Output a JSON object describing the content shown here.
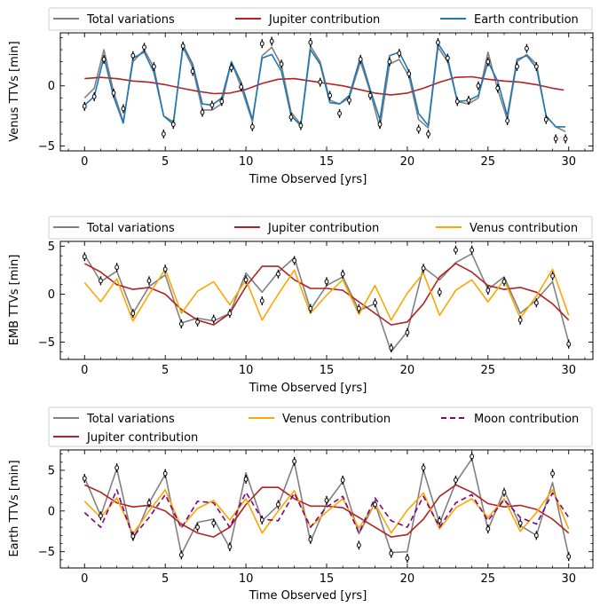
{
  "figure": {
    "panels": [
      {
        "legend_entries": [
          "Total variations",
          "Jupiter contribution",
          "Earth contribution"
        ],
        "ylabel": "Venus TTVs [min]",
        "xlabel": "Time Observed [yrs]"
      },
      {
        "legend_entries": [
          "Total variations",
          "Jupiter contribution",
          "Venus contribution"
        ],
        "ylabel": "EMB TTVs [min]",
        "xlabel": "Time Observed [yrs]"
      },
      {
        "legend_entries": [
          "Total variations",
          "Venus contribution",
          "Moon contribution",
          "Jupiter contribution"
        ],
        "ylabel": "Earth TTVs [min]",
        "xlabel": "Time Observed [yrs]"
      }
    ]
  },
  "colors": {
    "total": "#808080",
    "jupiter": "#b22222",
    "earth": "#1f77b4",
    "venus": "#ffa500",
    "moon": "#800080"
  },
  "chart_data": [
    {
      "type": "line",
      "xlabel": "Time Observed [yrs]",
      "ylabel": "Venus TTVs [min]",
      "xlim": [
        -1.5,
        31.5
      ],
      "ylim": [
        -5.4,
        4.4
      ],
      "x_ticks": [
        0,
        5,
        10,
        15,
        20,
        25,
        30
      ],
      "y_ticks": [
        -5,
        0
      ],
      "series": [
        {
          "name": "Total variations",
          "color": "#808080",
          "dash": "",
          "x": [
            0,
            0.6,
            1.2,
            1.8,
            2.4,
            3.0,
            3.7,
            4.3,
            4.9,
            5.5,
            6.1,
            6.7,
            7.3,
            7.9,
            8.5,
            9.1,
            9.7,
            10.4,
            11.0,
            11.6,
            12.2,
            12.8,
            13.4,
            14.0,
            14.6,
            15.2,
            15.8,
            16.4,
            17.1,
            17.7,
            18.3,
            18.9,
            19.5,
            20.1,
            20.7,
            21.3,
            21.9,
            22.5,
            23.1,
            23.8,
            24.4,
            25.0,
            25.6,
            26.2,
            26.8,
            27.4,
            28.0,
            28.6,
            29.2,
            29.8
          ],
          "y": [
            -1.0,
            -0.2,
            3.0,
            -0.5,
            -3.0,
            2.0,
            3.0,
            1.5,
            -2.5,
            -3.0,
            3.2,
            1.5,
            -2.0,
            -2.0,
            -1.5,
            2.0,
            -0.1,
            -3.0,
            2.5,
            3.2,
            1.7,
            -2.2,
            -3.2,
            3.3,
            2.0,
            -1.2,
            -1.5,
            -1.0,
            2.0,
            -0.5,
            -3.5,
            1.8,
            2.2,
            0.8,
            -2.8,
            -3.5,
            3.2,
            2.0,
            -1.3,
            -1.5,
            -1.0,
            2.8,
            -0.3,
            -2.8,
            2.0,
            2.6,
            1.8,
            -2.5,
            -3.4,
            -3.8
          ]
        },
        {
          "name": "Jupiter contribution",
          "color": "#b22222",
          "dash": "",
          "x": [
            0,
            1,
            2,
            3,
            4,
            5,
            6,
            7,
            8,
            9,
            10,
            11,
            12,
            13,
            14,
            15,
            16,
            17,
            18,
            19,
            20,
            21,
            22,
            23,
            24,
            25,
            26,
            27,
            28,
            29,
            29.7
          ],
          "y": [
            0.6,
            0.7,
            0.6,
            0.4,
            0.3,
            0.1,
            -0.2,
            -0.45,
            -0.65,
            -0.6,
            -0.3,
            0.2,
            0.55,
            0.6,
            0.4,
            0.2,
            0.0,
            -0.3,
            -0.6,
            -0.75,
            -0.6,
            -0.2,
            0.3,
            0.7,
            0.75,
            0.55,
            0.4,
            0.3,
            0.1,
            -0.2,
            -0.35
          ]
        },
        {
          "name": "Earth contribution",
          "color": "#1f77b4",
          "dash": "",
          "x": [
            0,
            0.6,
            1.2,
            1.8,
            2.4,
            3.0,
            3.7,
            4.3,
            4.9,
            5.5,
            6.1,
            6.7,
            7.3,
            7.9,
            8.5,
            9.1,
            9.7,
            10.4,
            11.0,
            11.6,
            12.2,
            12.8,
            13.4,
            14.0,
            14.6,
            15.2,
            15.8,
            16.4,
            17.1,
            17.7,
            18.3,
            18.9,
            19.5,
            20.1,
            20.7,
            21.3,
            21.9,
            22.5,
            23.1,
            23.8,
            24.4,
            25.0,
            25.6,
            26.2,
            26.8,
            27.4,
            28.0,
            28.6,
            29.2,
            29.8
          ],
          "y": [
            -1.6,
            -0.9,
            2.4,
            -0.9,
            -3.1,
            2.3,
            2.8,
            1.1,
            -2.5,
            -3.2,
            3.4,
            1.8,
            -1.5,
            -1.6,
            -1.0,
            2.0,
            0.3,
            -2.8,
            2.3,
            2.6,
            1.2,
            -2.5,
            -3.3,
            3.0,
            1.8,
            -1.4,
            -1.5,
            -0.8,
            2.4,
            -0.3,
            -2.8,
            2.5,
            2.8,
            1.2,
            -2.3,
            -3.3,
            3.5,
            2.3,
            -1.3,
            -1.2,
            -0.8,
            2.0,
            0.4,
            -2.5,
            2.2,
            2.5,
            1.5,
            -2.5,
            -3.4,
            -3.4
          ]
        },
        {
          "name": "",
          "type": "points",
          "x": [
            0,
            0.6,
            1.2,
            1.8,
            2.4,
            3.0,
            3.7,
            4.3,
            4.9,
            5.5,
            6.1,
            6.7,
            7.3,
            7.9,
            8.5,
            9.1,
            9.7,
            10.4,
            11.0,
            11.6,
            12.2,
            12.8,
            13.4,
            14.0,
            14.6,
            15.2,
            15.8,
            16.4,
            17.1,
            17.7,
            18.3,
            18.9,
            19.5,
            20.1,
            20.7,
            21.3,
            21.9,
            22.5,
            23.1,
            23.8,
            24.4,
            25.0,
            25.6,
            26.2,
            26.8,
            27.4,
            28.0,
            28.6,
            29.2,
            29.8
          ],
          "y": [
            -1.7,
            -0.9,
            2.2,
            -0.6,
            -1.9,
            2.5,
            3.2,
            1.6,
            -4.0,
            -3.2,
            3.3,
            1.2,
            -2.2,
            -1.6,
            -1.3,
            1.5,
            -0.1,
            -3.4,
            3.5,
            3.7,
            1.8,
            -2.6,
            -3.3,
            3.6,
            0.3,
            -0.8,
            -2.3,
            -1.2,
            2.2,
            -0.8,
            -3.2,
            2.0,
            2.7,
            1.0,
            -3.6,
            -4.0,
            3.6,
            2.3,
            -1.3,
            -1.2,
            0.0,
            2.0,
            -0.2,
            -2.9,
            1.6,
            3.1,
            1.6,
            -2.8,
            -4.4,
            -4.4
          ]
        }
      ]
    },
    {
      "type": "line",
      "xlabel": "Time Observed [yrs]",
      "ylabel": "EMB TTVs [min]",
      "xlim": [
        -1.5,
        31.5
      ],
      "ylim": [
        -6.8,
        5.5
      ],
      "x_ticks": [
        0,
        5,
        10,
        15,
        20,
        25,
        30
      ],
      "y_ticks": [
        -5,
        0,
        5
      ],
      "series": [
        {
          "name": "Total variations",
          "color": "#808080",
          "dash": "",
          "x": [
            0,
            1,
            2,
            3,
            4,
            5,
            6,
            7,
            8,
            9,
            10,
            11,
            12,
            13,
            14,
            15,
            16,
            17,
            18,
            19,
            20,
            21,
            22,
            23,
            24,
            25,
            26,
            27,
            28,
            29,
            30
          ],
          "y": [
            4.1,
            1.3,
            2.4,
            -2.0,
            0.8,
            2.0,
            -3.0,
            -2.5,
            -2.8,
            -2.0,
            2.2,
            0.2,
            2.3,
            3.8,
            -1.6,
            0.9,
            1.8,
            -1.7,
            -1.0,
            -6.0,
            -3.9,
            2.8,
            1.5,
            3.3,
            4.2,
            0.5,
            1.8,
            -2.0,
            -0.6,
            1.3,
            -5.0
          ]
        },
        {
          "name": "Jupiter contribution",
          "color": "#b22222",
          "dash": "",
          "x": [
            0,
            1,
            2,
            3,
            4,
            5,
            6,
            7,
            8,
            9,
            10,
            11,
            12,
            13,
            14,
            15,
            16,
            17,
            18,
            19,
            20,
            21,
            22,
            23,
            24,
            25,
            26,
            27,
            28,
            29,
            30
          ],
          "y": [
            3.2,
            2.3,
            1.0,
            0.5,
            0.7,
            0.0,
            -1.6,
            -2.7,
            -3.2,
            -2.0,
            0.8,
            2.9,
            2.9,
            1.5,
            0.6,
            0.6,
            0.4,
            -0.8,
            -2.0,
            -3.2,
            -2.9,
            -1.0,
            1.8,
            3.2,
            2.3,
            0.9,
            0.5,
            0.7,
            0.2,
            -1.0,
            -2.7
          ]
        },
        {
          "name": "Venus contribution",
          "color": "#ffa500",
          "dash": "",
          "x": [
            0,
            1,
            2,
            3,
            4,
            5,
            6,
            7,
            8,
            9,
            10,
            11,
            12,
            13,
            14,
            15,
            16,
            17,
            18,
            19,
            20,
            21,
            22,
            23,
            24,
            25,
            26,
            27,
            28,
            29,
            30
          ],
          "y": [
            1.2,
            -0.8,
            1.6,
            -2.8,
            0.0,
            2.6,
            -2.0,
            0.3,
            1.3,
            -1.1,
            1.5,
            -2.7,
            0.0,
            2.5,
            -2.0,
            -0.1,
            1.5,
            -2.1,
            0.9,
            -2.7,
            0.1,
            2.2,
            -2.2,
            0.4,
            1.5,
            -0.8,
            1.5,
            -2.5,
            -0.2,
            2.6,
            -2.2
          ]
        },
        {
          "name": "",
          "type": "points",
          "x": [
            0,
            1,
            2,
            3,
            4,
            5,
            6,
            7,
            8,
            9,
            10,
            11,
            12,
            13,
            14,
            15,
            16,
            17,
            18,
            19,
            20,
            21,
            22,
            23,
            24,
            25,
            26,
            27,
            28,
            29,
            30
          ],
          "y": [
            3.9,
            1.4,
            2.8,
            -2.0,
            1.4,
            2.6,
            -3.1,
            -2.9,
            -2.6,
            -2.0,
            1.5,
            -0.7,
            2.1,
            3.5,
            -1.5,
            1.3,
            2.1,
            -1.5,
            -0.9,
            -5.6,
            -4.0,
            2.7,
            0.2,
            4.6,
            4.6,
            0.4,
            1.3,
            -2.7,
            -0.9,
            1.9,
            -5.2
          ]
        }
      ]
    },
    {
      "type": "line",
      "xlabel": "Time Observed [yrs]",
      "ylabel": "Earth TTVs [min]",
      "xlim": [
        -1.5,
        31.5
      ],
      "ylim": [
        -7.0,
        7.5
      ],
      "x_ticks": [
        0,
        5,
        10,
        15,
        20,
        25,
        30
      ],
      "y_ticks": [
        -5,
        0,
        5
      ],
      "series": [
        {
          "name": "Total variations",
          "color": "#808080",
          "dash": "",
          "x": [
            0,
            1,
            2,
            3,
            4,
            5,
            6,
            7,
            8,
            9,
            10,
            11,
            12,
            13,
            14,
            15,
            16,
            17,
            18,
            19,
            20,
            21,
            22,
            23,
            24,
            25,
            26,
            27,
            28,
            29,
            30
          ],
          "y": [
            4.1,
            -0.6,
            5.2,
            -3.6,
            1.0,
            4.5,
            -5.3,
            -1.4,
            -1.0,
            -4.5,
            4.7,
            -1.2,
            0.7,
            6.0,
            -3.8,
            0.9,
            3.6,
            -2.8,
            1.0,
            -5.1,
            -5.0,
            5.0,
            -1.5,
            3.5,
            6.4,
            -2.3,
            2.5,
            -1.8,
            -3.0,
            3.5,
            -5.5
          ]
        },
        {
          "name": "Jupiter contribution",
          "color": "#b22222",
          "dash": "",
          "x": [
            0,
            1,
            2,
            3,
            4,
            5,
            6,
            7,
            8,
            9,
            10,
            11,
            12,
            13,
            14,
            15,
            16,
            17,
            18,
            19,
            20,
            21,
            22,
            23,
            24,
            25,
            26,
            27,
            28,
            29,
            30
          ],
          "y": [
            3.2,
            2.3,
            1.0,
            0.5,
            0.7,
            0.0,
            -1.6,
            -2.7,
            -3.2,
            -2.0,
            0.8,
            2.9,
            2.9,
            1.5,
            0.6,
            0.6,
            0.4,
            -0.8,
            -2.0,
            -3.2,
            -2.9,
            -1.0,
            1.8,
            3.2,
            2.3,
            0.9,
            0.5,
            0.7,
            0.2,
            -1.0,
            -2.7
          ]
        },
        {
          "name": "Venus contribution",
          "color": "#ffa500",
          "dash": "",
          "x": [
            0,
            1,
            2,
            3,
            4,
            5,
            6,
            7,
            8,
            9,
            10,
            11,
            12,
            13,
            14,
            15,
            16,
            17,
            18,
            19,
            20,
            21,
            22,
            23,
            24,
            25,
            26,
            27,
            28,
            29,
            30
          ],
          "y": [
            1.2,
            -0.8,
            1.6,
            -2.8,
            0.0,
            2.6,
            -2.0,
            0.3,
            1.3,
            -1.1,
            1.5,
            -2.7,
            0.0,
            2.5,
            -2.0,
            -0.1,
            1.5,
            -2.1,
            0.9,
            -2.7,
            0.1,
            2.2,
            -2.2,
            0.4,
            1.5,
            -0.8,
            1.5,
            -2.5,
            -0.2,
            2.6,
            -2.2
          ]
        },
        {
          "name": "Moon contribution",
          "color": "#800080",
          "dash": "6,4",
          "x": [
            0,
            1,
            2,
            3,
            4,
            5,
            6,
            7,
            8,
            9,
            10,
            11,
            12,
            13,
            14,
            15,
            16,
            17,
            18,
            19,
            20,
            21,
            22,
            23,
            24,
            25,
            26,
            27,
            28,
            29,
            30
          ],
          "y": [
            -0.2,
            -2.0,
            2.6,
            -3.2,
            -0.8,
            2.0,
            -2.1,
            1.2,
            1.0,
            -2.0,
            2.3,
            -1.0,
            -1.2,
            2.2,
            -2.0,
            0.5,
            1.8,
            -2.7,
            1.6,
            -1.2,
            -2.0,
            1.8,
            -2.0,
            1.0,
            2.0,
            -1.2,
            1.4,
            -0.8,
            -1.6,
            2.2,
            -0.8
          ]
        },
        {
          "name": "",
          "type": "points",
          "x": [
            0,
            1,
            2,
            3,
            4,
            5,
            6,
            7,
            8,
            9,
            10,
            11,
            12,
            13,
            14,
            15,
            16,
            17,
            18,
            19,
            20,
            21,
            22,
            23,
            24,
            25,
            26,
            27,
            28,
            29,
            30
          ],
          "y": [
            4.0,
            -0.6,
            5.3,
            -3.1,
            1.0,
            4.6,
            -5.4,
            -2.0,
            -1.5,
            -4.4,
            3.9,
            -1.1,
            0.8,
            6.1,
            -3.5,
            1.3,
            3.8,
            -4.2,
            0.8,
            -5.2,
            -5.8,
            5.3,
            -1.2,
            3.8,
            6.7,
            -2.2,
            2.3,
            -1.5,
            -3.0,
            4.6,
            -5.6
          ]
        }
      ]
    }
  ]
}
